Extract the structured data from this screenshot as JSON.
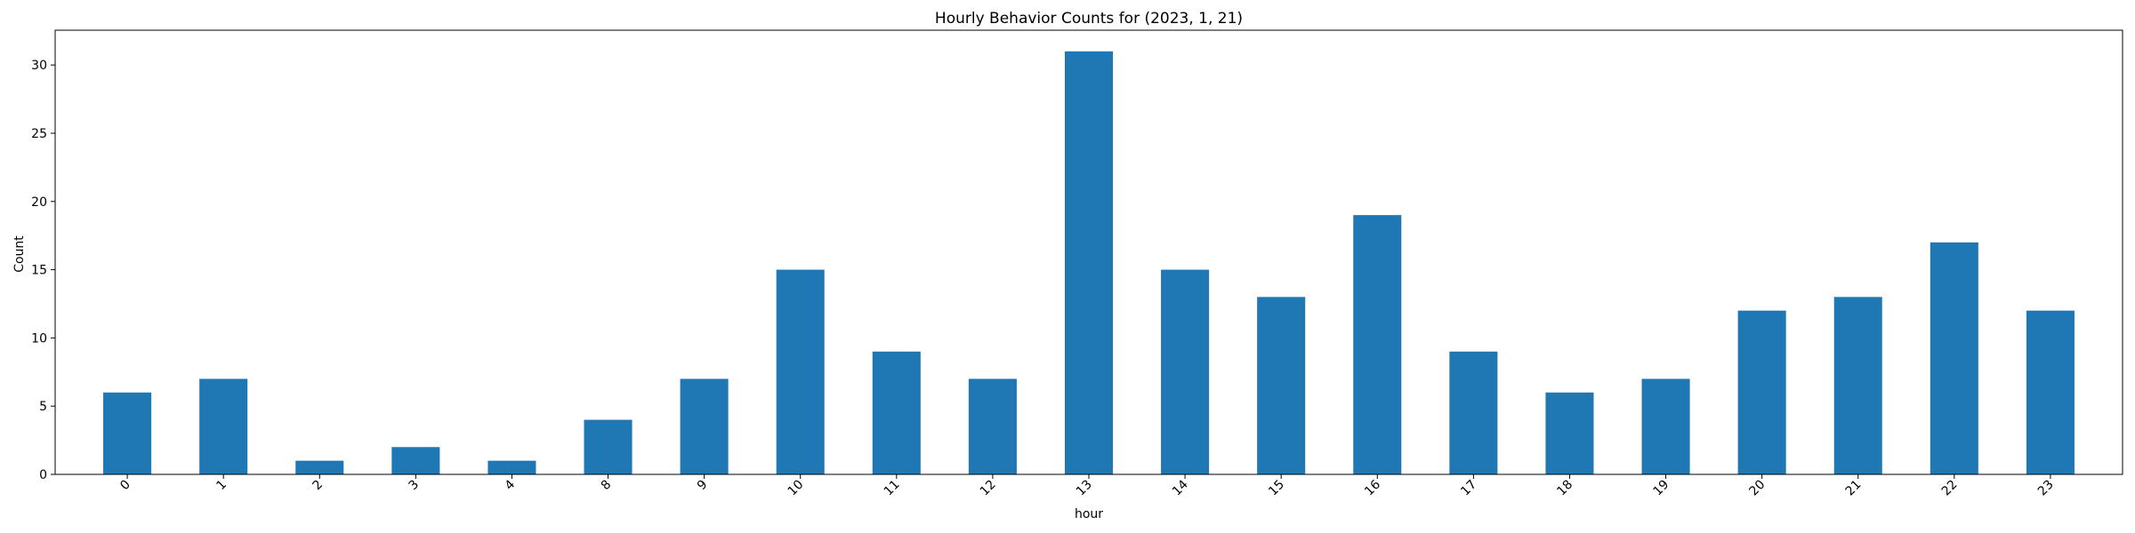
{
  "chart_data": {
    "type": "bar",
    "title": "Hourly Behavior Counts for (2023, 1, 21)",
    "xlabel": "hour",
    "ylabel": "Count",
    "categories": [
      "0",
      "1",
      "2",
      "3",
      "4",
      "8",
      "9",
      "10",
      "11",
      "12",
      "13",
      "14",
      "15",
      "16",
      "17",
      "18",
      "19",
      "20",
      "21",
      "22",
      "23"
    ],
    "values": [
      6,
      7,
      1,
      2,
      1,
      4,
      7,
      15,
      9,
      7,
      31,
      15,
      13,
      19,
      9,
      6,
      7,
      12,
      13,
      17,
      12
    ],
    "ylim": [
      0,
      32.55
    ],
    "yticks": [
      0,
      5,
      10,
      15,
      20,
      25,
      30
    ],
    "grid": false,
    "bar_color": "#1f77b4"
  }
}
